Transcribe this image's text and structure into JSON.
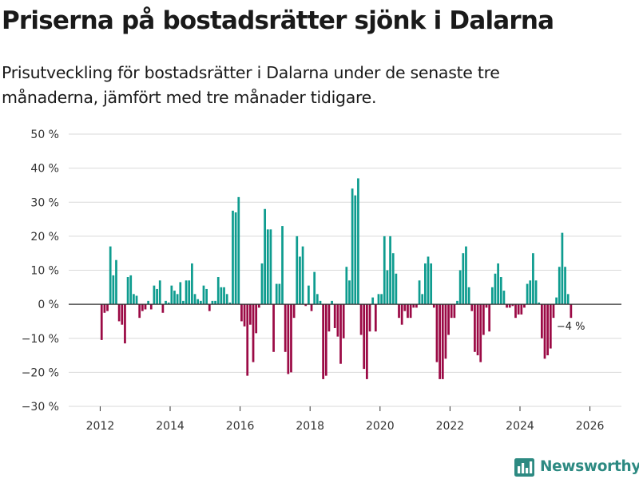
{
  "colors": {
    "positive": "#0e9c8f",
    "negative": "#9b0a45",
    "grid": "#d9d9d9",
    "axis": "#333333",
    "brand": "#2d8a82"
  },
  "logo": {
    "text": "Newsworthy",
    "icon": "chart-bars-icon"
  },
  "chart_data": {
    "type": "bar",
    "title": "Priserna på bostadsrätter sjönk i Dalarna",
    "subtitle": "Prisutveckling för bostadsrätter i Dalarna under de senaste tre månaderna, jämfört med tre månader tidigare.",
    "xlabel": "",
    "ylabel": "",
    "ylim": [
      -30,
      50
    ],
    "xlim": [
      2011.1,
      2026.9
    ],
    "grid": true,
    "y_ticks": [
      50,
      40,
      30,
      20,
      10,
      0,
      -10,
      -20,
      -30
    ],
    "y_tick_labels": [
      "50 %",
      "40 %",
      "30 %",
      "20 %",
      "10 %",
      "0 %",
      "−10 %",
      "−20 %",
      "−30 %"
    ],
    "x_ticks": [
      2012,
      2014,
      2016,
      2018,
      2020,
      2022,
      2024,
      2026
    ],
    "x_tick_labels": [
      "2012",
      "2014",
      "2016",
      "2018",
      "2020",
      "2022",
      "2024",
      "2026"
    ],
    "start": "2012-01",
    "frequency": "monthly",
    "values": [
      -10.5,
      -2.5,
      -2,
      17,
      8.5,
      13,
      -5,
      -6,
      -11.5,
      8,
      8.5,
      3,
      2.5,
      -4,
      -2,
      -1.5,
      1,
      -1.5,
      5.5,
      4.5,
      7,
      -2.5,
      1,
      0.5,
      5.5,
      4,
      3,
      6.5,
      1,
      7,
      7,
      12,
      3,
      1.5,
      1,
      5.5,
      4.5,
      -2,
      1,
      1,
      8,
      5,
      5,
      3,
      0.5,
      27.5,
      27,
      31.5,
      -5,
      -6.5,
      -21,
      -6,
      -17,
      -8.5,
      -1,
      12,
      28,
      22,
      22,
      -14,
      6,
      6,
      23,
      -14,
      -20.5,
      -20,
      -4,
      20,
      14,
      17,
      -0.5,
      5.5,
      -2,
      9.5,
      3,
      1,
      -22,
      -21,
      -8,
      1,
      -7,
      -9.5,
      -17.5,
      -10,
      11,
      7,
      34,
      32,
      37,
      -9,
      -19,
      -22,
      -8,
      2,
      -8,
      3,
      3,
      20,
      10,
      20,
      15,
      9,
      -4,
      -6,
      -2,
      -4,
      -4,
      -1,
      -1,
      7,
      3,
      12,
      14,
      12,
      -1,
      -17,
      -22,
      -22,
      -16,
      -9,
      -4,
      -4,
      1,
      10,
      15,
      17,
      5,
      -2,
      -14,
      -15,
      -17,
      -9,
      -1,
      -8,
      5,
      9,
      12,
      8,
      4,
      -1,
      -1,
      -0.5,
      -4,
      -3,
      -3,
      -1,
      6,
      7,
      15,
      7,
      0.5,
      -10,
      -16,
      -15,
      -13,
      -4,
      2,
      11,
      21,
      11,
      3,
      -4
    ],
    "annotation": {
      "text": "−4 %",
      "target": "last"
    }
  }
}
